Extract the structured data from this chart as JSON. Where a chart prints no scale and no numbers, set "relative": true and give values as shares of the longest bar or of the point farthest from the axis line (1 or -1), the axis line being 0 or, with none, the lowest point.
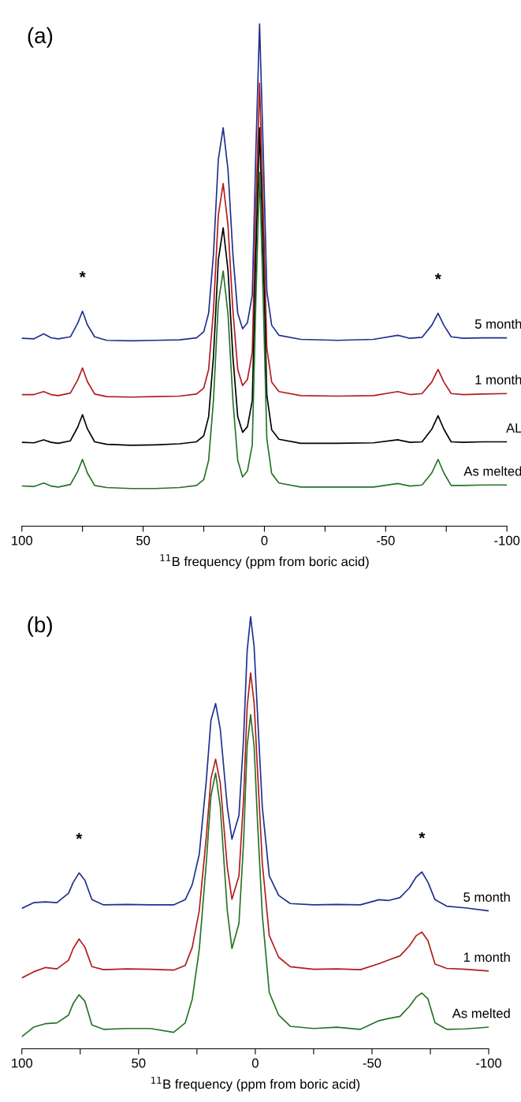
{
  "chart_data": [
    {
      "type": "line",
      "title": "(a)",
      "xlabel": "$^{11}$B frequency (ppm from boric acid)",
      "relative": true,
      "xlim": [
        100,
        -100
      ],
      "xticks": [
        100,
        {
          "value": 75,
          "label": null
        },
        50,
        {
          "value": 25,
          "label": null
        },
        0,
        {
          "value": -25,
          "label": null
        },
        -50,
        {
          "value": -75,
          "label": null
        },
        -100
      ],
      "tick_labels": "x",
      "grid": false,
      "legend": false,
      "line_style": "solid",
      "x": [
        100,
        95,
        91,
        88,
        85,
        80,
        77,
        75,
        73,
        70,
        65,
        55,
        45,
        35,
        28,
        25,
        23,
        21,
        19,
        17,
        15,
        13,
        11,
        9,
        7,
        5,
        3.5,
        2,
        0.5,
        -1,
        -3,
        -6,
        -15,
        -30,
        -45,
        -55,
        -60,
        -65,
        -69,
        -71.6,
        -74,
        -77,
        -82,
        -90,
        -100
      ],
      "series": [
        {
          "name": "5 month",
          "color": "#1f2f8f",
          "values": [
            0.374,
            0.373,
            0.383,
            0.375,
            0.373,
            0.377,
            0.404,
            0.428,
            0.401,
            0.377,
            0.37,
            0.369,
            0.37,
            0.371,
            0.375,
            0.387,
            0.424,
            0.542,
            0.73,
            0.793,
            0.709,
            0.542,
            0.424,
            0.393,
            0.405,
            0.46,
            0.75,
            1.0,
            0.75,
            0.468,
            0.4,
            0.38,
            0.372,
            0.37,
            0.372,
            0.38,
            0.374,
            0.376,
            0.4,
            0.424,
            0.4,
            0.377,
            0.374,
            0.375,
            0.375
          ]
        },
        {
          "name": "1 month",
          "color": "#b01c1c",
          "values": [
            0.262,
            0.262,
            0.268,
            0.262,
            0.26,
            0.265,
            0.291,
            0.315,
            0.288,
            0.263,
            0.258,
            0.257,
            0.258,
            0.259,
            0.263,
            0.275,
            0.312,
            0.43,
            0.619,
            0.682,
            0.598,
            0.43,
            0.312,
            0.28,
            0.292,
            0.346,
            0.634,
            0.882,
            0.634,
            0.355,
            0.287,
            0.268,
            0.26,
            0.259,
            0.26,
            0.268,
            0.262,
            0.264,
            0.287,
            0.312,
            0.287,
            0.264,
            0.262,
            0.263,
            0.264
          ]
        },
        {
          "name": "AL",
          "color": "#000000",
          "values": [
            0.167,
            0.166,
            0.172,
            0.167,
            0.165,
            0.17,
            0.197,
            0.222,
            0.194,
            0.168,
            0.163,
            0.161,
            0.162,
            0.164,
            0.168,
            0.18,
            0.218,
            0.338,
            0.53,
            0.594,
            0.509,
            0.338,
            0.218,
            0.187,
            0.198,
            0.25,
            0.543,
            0.793,
            0.543,
            0.261,
            0.192,
            0.173,
            0.165,
            0.165,
            0.166,
            0.172,
            0.167,
            0.168,
            0.193,
            0.22,
            0.193,
            0.168,
            0.167,
            0.168,
            0.168
          ]
        },
        {
          "name": "As melted",
          "color": "#267326",
          "values": [
            0.08,
            0.079,
            0.086,
            0.08,
            0.078,
            0.083,
            0.109,
            0.133,
            0.106,
            0.081,
            0.077,
            0.075,
            0.075,
            0.077,
            0.081,
            0.093,
            0.131,
            0.251,
            0.444,
            0.508,
            0.422,
            0.251,
            0.131,
            0.098,
            0.11,
            0.162,
            0.454,
            0.704,
            0.454,
            0.174,
            0.105,
            0.086,
            0.078,
            0.078,
            0.078,
            0.085,
            0.08,
            0.082,
            0.106,
            0.133,
            0.106,
            0.081,
            0.081,
            0.082,
            0.082
          ]
        }
      ],
      "annotations": [
        {
          "text": "*",
          "x": 75,
          "y": 0.428
        },
        {
          "text": "*",
          "x": -71.6,
          "y": 0.424
        }
      ]
    },
    {
      "type": "line",
      "title": "(b)",
      "xlabel": "$^{11}$B frequency (ppm from boric acid)",
      "relative": true,
      "xlim": [
        100,
        -100
      ],
      "xticks": [
        100,
        {
          "value": 75,
          "label": null
        },
        50,
        {
          "value": 25,
          "label": null
        },
        0,
        {
          "value": -25,
          "label": null
        },
        -50,
        {
          "value": -75,
          "label": null
        },
        -100
      ],
      "tick_labels": "x",
      "grid": false,
      "legend": false,
      "line_style": "solid",
      "x": [
        100,
        95,
        90,
        85,
        80,
        78,
        75.5,
        73,
        70,
        65,
        55,
        45,
        35,
        30,
        27,
        24,
        21,
        19,
        17,
        15,
        12,
        10,
        7,
        5,
        3.5,
        2,
        0.5,
        -1,
        -3,
        -6,
        -10,
        -15,
        -25,
        -35,
        -45,
        -53,
        -57,
        -62,
        -66,
        -69,
        -71.4,
        -74,
        -77,
        -82,
        -90,
        -100
      ],
      "series": [
        {
          "name": "5 month",
          "color": "#1f2f8f",
          "values": [
            0.325,
            0.338,
            0.34,
            0.338,
            0.36,
            0.385,
            0.407,
            0.39,
            0.345,
            0.333,
            0.334,
            0.333,
            0.333,
            0.345,
            0.38,
            0.45,
            0.62,
            0.76,
            0.799,
            0.74,
            0.56,
            0.485,
            0.54,
            0.72,
            0.92,
            1.0,
            0.93,
            0.77,
            0.56,
            0.4,
            0.355,
            0.336,
            0.333,
            0.334,
            0.333,
            0.345,
            0.343,
            0.35,
            0.372,
            0.398,
            0.409,
            0.385,
            0.345,
            0.33,
            0.326,
            0.319
          ]
        },
        {
          "name": "1 month",
          "color": "#b01c1c",
          "values": [
            0.164,
            0.178,
            0.188,
            0.185,
            0.205,
            0.232,
            0.254,
            0.235,
            0.19,
            0.183,
            0.185,
            0.184,
            0.182,
            0.193,
            0.235,
            0.32,
            0.49,
            0.625,
            0.67,
            0.615,
            0.42,
            0.346,
            0.4,
            0.58,
            0.79,
            0.87,
            0.8,
            0.64,
            0.43,
            0.262,
            0.212,
            0.19,
            0.184,
            0.185,
            0.183,
            0.197,
            0.205,
            0.215,
            0.238,
            0.262,
            0.27,
            0.25,
            0.196,
            0.186,
            0.184,
            0.18
          ]
        },
        {
          "name": "As melted",
          "color": "#267326",
          "values": [
            0.028,
            0.05,
            0.058,
            0.06,
            0.078,
            0.105,
            0.125,
            0.11,
            0.055,
            0.045,
            0.047,
            0.047,
            0.038,
            0.06,
            0.115,
            0.23,
            0.43,
            0.585,
            0.638,
            0.56,
            0.32,
            0.232,
            0.29,
            0.48,
            0.7,
            0.773,
            0.7,
            0.52,
            0.31,
            0.13,
            0.078,
            0.052,
            0.047,
            0.05,
            0.045,
            0.065,
            0.07,
            0.075,
            0.098,
            0.12,
            0.129,
            0.115,
            0.06,
            0.045,
            0.046,
            0.05
          ]
        }
      ],
      "annotations": [
        {
          "text": "*",
          "x": 75.5,
          "y": 0.407
        },
        {
          "text": "*",
          "x": -71.4,
          "y": 0.409
        }
      ]
    }
  ]
}
